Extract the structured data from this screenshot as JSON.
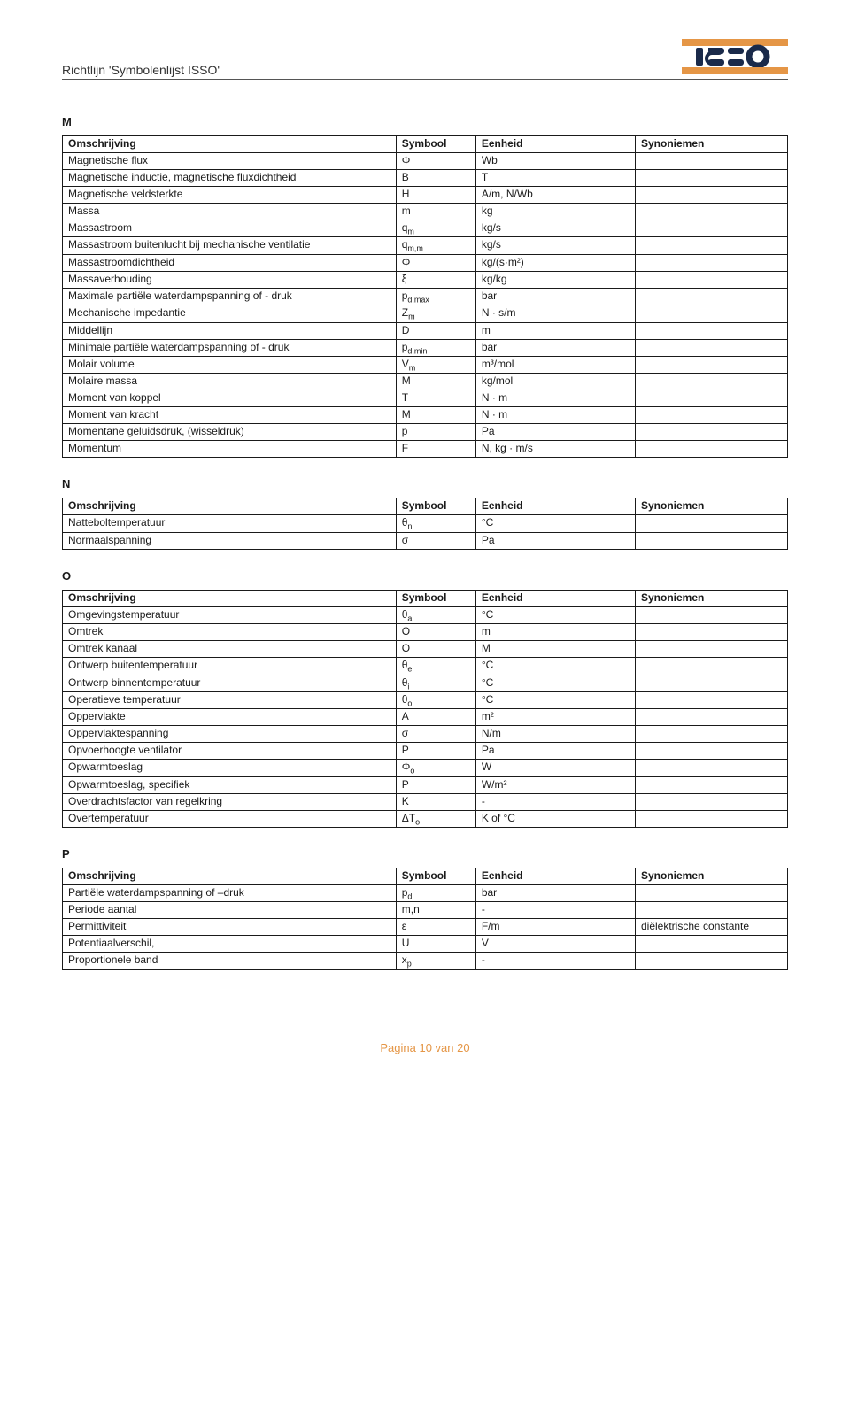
{
  "header": {
    "title": "Richtlijn 'Symbolenlijst ISSO'"
  },
  "columns": [
    "Omschrijving",
    "Symbool",
    "Eenheid",
    "Synoniemen"
  ],
  "sections": [
    {
      "letter": "M",
      "rows": [
        {
          "o": "Magnetische flux",
          "s": "Φ",
          "e": "Wb",
          "y": ""
        },
        {
          "o": "Magnetische inductie, magnetische fluxdichtheid",
          "s": "B",
          "e": "T",
          "y": ""
        },
        {
          "o": "Magnetische veldsterkte",
          "s": "H",
          "e": "A/m, N/Wb",
          "y": ""
        },
        {
          "o": "Massa",
          "s": "m",
          "e": "kg",
          "y": ""
        },
        {
          "o": "Massastroom",
          "s": "q",
          "sub": "m",
          "e": "kg/s",
          "y": ""
        },
        {
          "o": "Massastroom buitenlucht bij mechanische ventilatie",
          "s": "q",
          "sub": "m,m",
          "e": "kg/s",
          "y": ""
        },
        {
          "o": "Massastroomdichtheid",
          "s": "Φ",
          "e": "kg/(s·m²)",
          "y": ""
        },
        {
          "o": "Massaverhouding",
          "s": "ξ",
          "e": "kg/kg",
          "y": ""
        },
        {
          "o": "Maximale partiële waterdampspanning of - druk",
          "s": "p",
          "sub": "d,max",
          "e": "bar",
          "y": ""
        },
        {
          "o": "Mechanische impedantie",
          "s": "Z",
          "sub": "m",
          "e": "N · s/m",
          "y": ""
        },
        {
          "o": "Middellijn",
          "s": "D",
          "e": "m",
          "y": ""
        },
        {
          "o": "Minimale partiële waterdampspanning of - druk",
          "s": "p",
          "sub": "d,min",
          "e": "bar",
          "y": ""
        },
        {
          "o": "Molair volume",
          "s": "V",
          "sub": "m",
          "e": "m³/mol",
          "y": ""
        },
        {
          "o": "Molaire massa",
          "s": "M",
          "e": "kg/mol",
          "y": ""
        },
        {
          "o": "Moment van koppel",
          "s": "T",
          "e": "N · m",
          "y": ""
        },
        {
          "o": "Moment van kracht",
          "s": "M",
          "e": "N · m",
          "y": ""
        },
        {
          "o": "Momentane geluidsdruk, (wisseldruk)",
          "s": "p",
          "e": "Pa",
          "y": ""
        },
        {
          "o": "Momentum",
          "s": "F",
          "e": "N,  kg · m/s",
          "y": ""
        }
      ]
    },
    {
      "letter": "N",
      "rows": [
        {
          "o": "Natteboltemperatuur",
          "s": "θ",
          "sub": "n",
          "e": "°C",
          "y": ""
        },
        {
          "o": "Normaalspanning",
          "s": "σ",
          "e": "Pa",
          "y": ""
        }
      ]
    },
    {
      "letter": "O",
      "rows": [
        {
          "o": "Omgevingstemperatuur",
          "s": "θ",
          "sub": "a",
          "e": "°C",
          "y": ""
        },
        {
          "o": "Omtrek",
          "s": "O",
          "e": "m",
          "y": ""
        },
        {
          "o": "Omtrek kanaal",
          "s": "O",
          "e": "M",
          "y": ""
        },
        {
          "o": "Ontwerp buitentemperatuur",
          "s": "θ",
          "sub": "e",
          "e": "°C",
          "y": ""
        },
        {
          "o": "Ontwerp binnentemperatuur",
          "s": "θ",
          "sub": "i",
          "e": "°C",
          "y": ""
        },
        {
          "o": "Operatieve temperatuur",
          "s": "θ",
          "sub": "o",
          "e": "°C",
          "y": ""
        },
        {
          "o": "Oppervlakte",
          "s": "A",
          "e": "m²",
          "y": ""
        },
        {
          "o": "Oppervlaktespanning",
          "s": "σ",
          "e": "N/m",
          "y": ""
        },
        {
          "o": "Opvoerhoogte ventilator",
          "s": "P",
          "e": "Pa",
          "y": ""
        },
        {
          "o": "Opwarmtoeslag",
          "s": "Φ",
          "sub": "o",
          "e": "W",
          "y": ""
        },
        {
          "o": "Opwarmtoeslag, specifiek",
          "s": "P",
          "e": "W/m²",
          "y": ""
        },
        {
          "o": "Overdrachtsfactor van regelkring",
          "s": "K",
          "e": "-",
          "y": ""
        },
        {
          "o": "Overtemperatuur",
          "s": "ΔT",
          "sub": "o",
          "e": "K of °C",
          "y": ""
        }
      ]
    },
    {
      "letter": "P",
      "rows": [
        {
          "o": "Partiële waterdampspanning of –druk",
          "s": "p",
          "sub": "d",
          "e": "bar",
          "y": ""
        },
        {
          "o": "Periode aantal",
          "s": "m,n",
          "e": "-",
          "y": ""
        },
        {
          "o": "Permittiviteit",
          "s": "ε",
          "e": "F/m",
          "y": "diëlektrische constante"
        },
        {
          "o": "Potentiaalverschil,",
          "s": "U",
          "e": "V",
          "y": ""
        },
        {
          "o": "Proportionele band",
          "s": "x",
          "sub": "p",
          "e": "-",
          "y": ""
        }
      ]
    }
  ],
  "footer": "Pagina 10 van 20",
  "logo": {
    "orange": "#e59646",
    "navy": "#1a2a4a"
  }
}
